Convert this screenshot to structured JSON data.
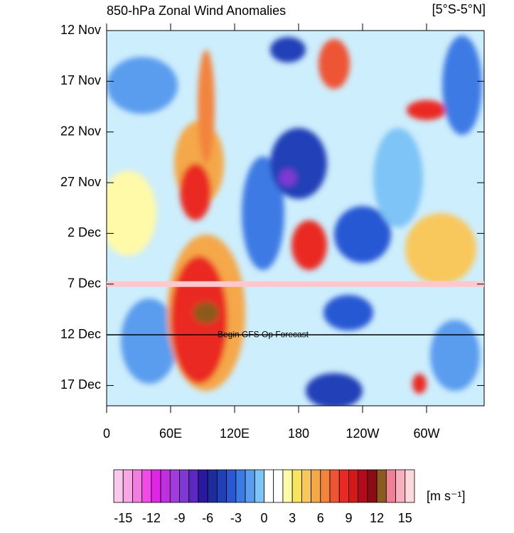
{
  "chart_data": {
    "type": "hovmoller",
    "title": "850-hPa Zonal Wind Anomalies",
    "subtitle": "[5°S-5°N]",
    "annotation": "Begin GFS Op Forecast",
    "forecast_start": 30,
    "highlight_day": 25,
    "highlight_color": "#ffc8cc",
    "xlim": [
      0,
      354
    ],
    "xticks": [
      0,
      {
        "value": 60,
        "label": "60E"
      },
      {
        "value": 120,
        "label": "120E"
      },
      180,
      {
        "value": 240,
        "label": "120W"
      },
      {
        "value": 300,
        "label": "60W"
      }
    ],
    "ylim": [
      0,
      37
    ],
    "yticks": [
      {
        "value": 0,
        "label": "12 Nov"
      },
      {
        "value": 5,
        "label": "17 Nov"
      },
      {
        "value": 10,
        "label": "22 Nov"
      },
      {
        "value": 15,
        "label": "27 Nov"
      },
      {
        "value": 20,
        "label": "2 Dec"
      },
      {
        "value": 25,
        "label": "7 Dec"
      },
      {
        "value": 30,
        "label": "12 Dec"
      },
      {
        "value": 35,
        "label": "17 Dec"
      }
    ],
    "colorbar": {
      "unit": "[m s⁻¹]",
      "lim": [
        -16,
        16
      ],
      "ticks": [
        -15,
        -12,
        -9,
        -6,
        -3,
        0,
        3,
        6,
        9,
        12,
        15
      ],
      "colors": [
        "#fac8ec",
        "#f8a6e4",
        "#f47ce0",
        "#f04ae8",
        "#e024e8",
        "#c030e0",
        "#a03cdc",
        "#8038d4",
        "#5a28c0",
        "#2a18a0",
        "#1c2c9c",
        "#2040b8",
        "#2858d4",
        "#3c7ae4",
        "#5a9cee",
        "#7ec4f6",
        "#ffffff",
        "#ffffff",
        "#fffaa8",
        "#f8e460",
        "#f8c85c",
        "#f4a848",
        "#f2843c",
        "#ee5434",
        "#ea2a22",
        "#d41818",
        "#b00c1c",
        "#8c0c14",
        "#8a5a1e",
        "#f08098",
        "#f8b0c0",
        "#fcd8dc"
      ]
    }
  }
}
